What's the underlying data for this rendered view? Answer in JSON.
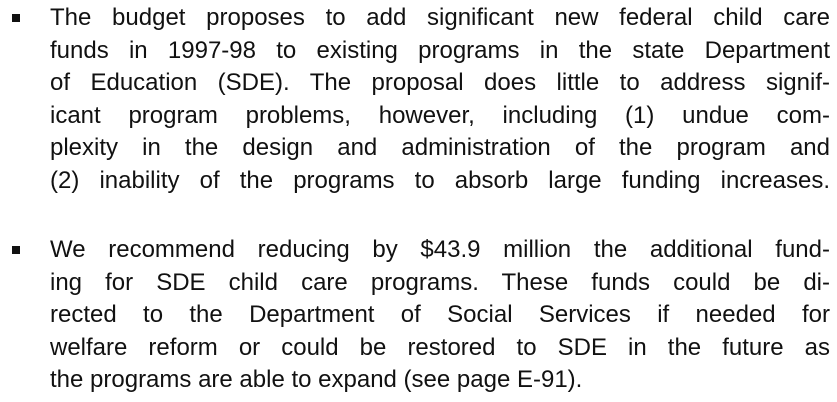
{
  "bullets": [
    {
      "lines": [
        "The budget proposes to add significant new federal child care",
        "funds in 1997-98 to existing programs in the state Department",
        "of Education (SDE). The proposal does little to address signif-",
        "icant program problems, however, including (1) undue com-",
        "plexity in the design and administration of the program and",
        "(2) inability of the programs to absorb large funding increases."
      ]
    },
    {
      "lines": [
        "We recommend reducing by $43.9 million the additional fund-",
        "ing for SDE child care programs. These funds could be di-",
        "rected to the Department of Social Services if needed for",
        "welfare reform or could be restored to SDE in the future as",
        "the programs are able to expand (see page E-91)."
      ]
    }
  ]
}
